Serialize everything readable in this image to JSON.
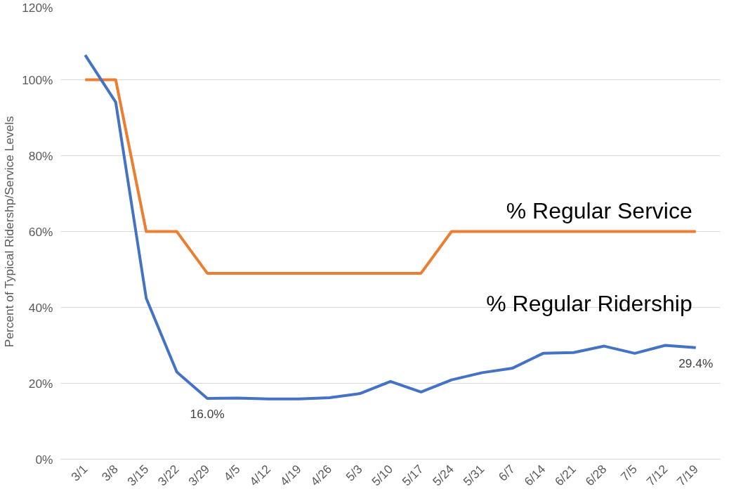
{
  "chart_data": {
    "type": "line",
    "ylabel": "Percent of Typical Ridershp/Service Levels",
    "categories": [
      "3/1",
      "3/8",
      "3/15",
      "3/22",
      "3/29",
      "4/5",
      "4/12",
      "4/19",
      "4/26",
      "5/3",
      "5/10",
      "5/17",
      "5/24",
      "5/31",
      "6/7",
      "6/14",
      "6/21",
      "6/28",
      "7/5",
      "7/12",
      "7/19"
    ],
    "series": [
      {
        "name": "% Regular Service",
        "color": "#ed7d31",
        "values": [
          100,
          100,
          60,
          60,
          49,
          49,
          49,
          49,
          49,
          49,
          49,
          49,
          60,
          60,
          60,
          60,
          60,
          60,
          60,
          60,
          60
        ]
      },
      {
        "name": "% Regular Ridership",
        "color": "#4472c4",
        "values": [
          106.5,
          94.1,
          42.4,
          23.0,
          16.0,
          16.1,
          15.9,
          15.9,
          16.2,
          17.3,
          20.5,
          17.7,
          20.9,
          22.8,
          24.0,
          27.9,
          28.1,
          29.8,
          27.9,
          30.0,
          29.4
        ],
        "value_labels": [
          null,
          null,
          null,
          null,
          "16.0%",
          null,
          null,
          null,
          null,
          null,
          null,
          null,
          null,
          null,
          null,
          null,
          null,
          null,
          null,
          null,
          "29.4%"
        ]
      }
    ],
    "ylim": [
      0,
      120
    ],
    "yticks": [
      {
        "value": 0,
        "label": "0%"
      },
      {
        "value": 20,
        "label": "20%"
      },
      {
        "value": 40,
        "label": "40%"
      },
      {
        "value": 60,
        "label": "60%"
      },
      {
        "value": 80,
        "label": "80%"
      },
      {
        "value": 100,
        "label": "100%"
      },
      {
        "value": 120,
        "label": "120%"
      }
    ],
    "grid": "y",
    "marker": "none",
    "line_style": "solid"
  }
}
